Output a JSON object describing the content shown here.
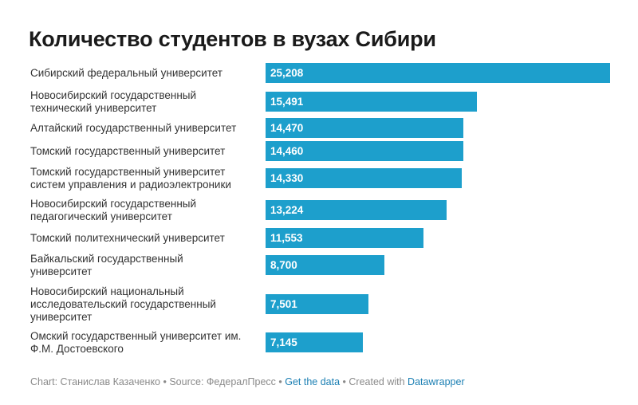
{
  "chart_data": {
    "type": "bar",
    "orientation": "horizontal",
    "title": "Количество студентов в вузах Сибири",
    "categories": [
      "Сибирский федеральный университет",
      "Новосибирский государственный\nтехнический университет",
      "Алтайский государственный университет",
      "Томский государственный университет",
      "Томский государственный университет\nсистем управления и радиоэлектроники",
      "Новосибирский государственный\nпедагогический университет",
      "Томский политехнический университет",
      "Байкальский государственный\nуниверситет",
      "Новосибирский национальный\nисследовательский государственный\nуниверситет",
      "Омский государственный университет им.\nФ.М. Достоевского"
    ],
    "values": [
      25208,
      15491,
      14470,
      14460,
      14330,
      13224,
      11553,
      8700,
      7501,
      7145
    ],
    "value_labels": [
      "25,208",
      "15,491",
      "14,470",
      "14,460",
      "14,330",
      "13,224",
      "11,553",
      "8,700",
      "7,501",
      "7,145"
    ],
    "bar_color": "#1d9fcc",
    "xlim": [
      0,
      25208
    ]
  },
  "footer": {
    "chart_prefix": "Chart: Станислав Казаченко",
    "sep1": " • ",
    "source": "Source: ФедералПресс",
    "sep2": " • ",
    "get_data": "Get the data",
    "sep3": " • ",
    "created_with": "Created with ",
    "datawrapper": "Datawrapper"
  },
  "colors": {
    "link": "#1b7fb3",
    "footer_text": "#8a8a8a"
  }
}
